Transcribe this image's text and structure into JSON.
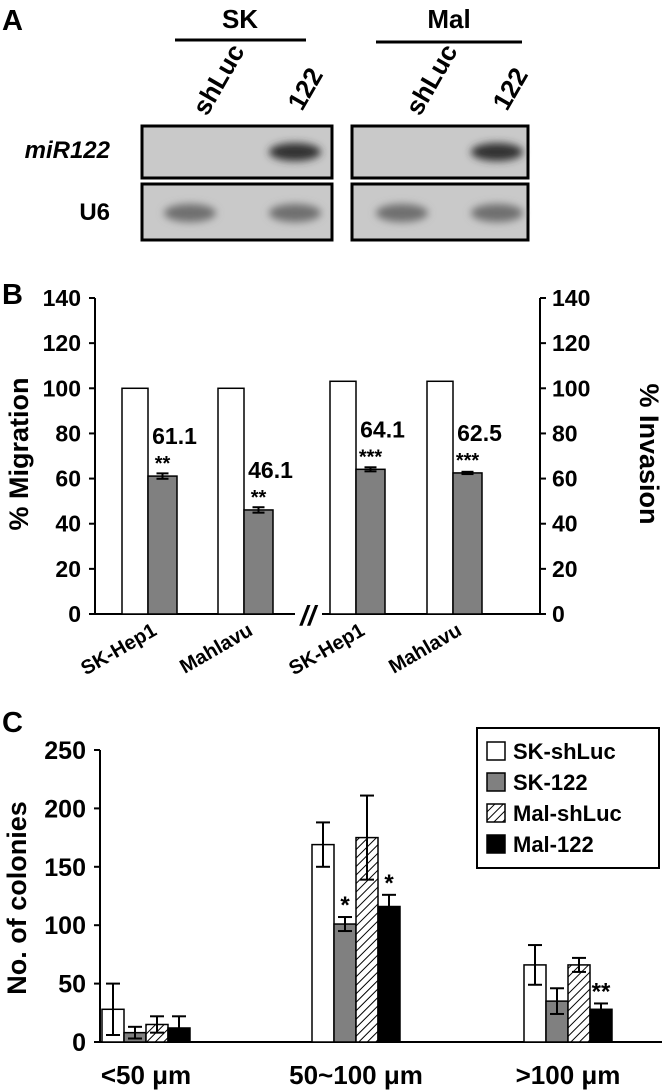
{
  "panel_a": {
    "letter": "A",
    "groups": [
      {
        "name": "SK",
        "lanes": [
          "shLuc",
          "122"
        ]
      },
      {
        "name": "Mal",
        "lanes": [
          "shLuc",
          "122"
        ]
      }
    ],
    "rows": [
      "miR122",
      "U6"
    ],
    "band_signal": {
      "miR122": [
        0,
        1,
        0,
        1
      ],
      "U6": [
        1,
        1,
        1,
        1
      ]
    }
  },
  "chart_data": [
    {
      "panel": "B",
      "type": "bar",
      "title": "",
      "ylabel_left": "% Migration",
      "ylabel_right": "% Invasion",
      "ylim": [
        0,
        140
      ],
      "yticks": [
        0,
        20,
        40,
        60,
        80,
        100,
        120,
        140
      ],
      "groups": [
        {
          "assay": "Migration",
          "category": "SK-Hep1",
          "values": [
            100,
            61.1
          ],
          "errors": [
            0,
            1.2
          ],
          "label": "61.1",
          "sig": "**"
        },
        {
          "assay": "Migration",
          "category": "Mahlavu",
          "values": [
            100,
            46.1
          ],
          "errors": [
            0,
            1.2
          ],
          "label": "46.1",
          "sig": "**"
        },
        {
          "assay": "Invasion",
          "category": "SK-Hep1",
          "values": [
            100,
            64.1
          ],
          "errors": [
            0,
            0.9
          ],
          "label": "64.1",
          "sig": "***"
        },
        {
          "assay": "Invasion",
          "category": "Mahlavu",
          "values": [
            100,
            62.5
          ],
          "errors": [
            0,
            0.5
          ],
          "label": "62.5",
          "sig": "***"
        }
      ],
      "break_mark": "//",
      "grid": false
    },
    {
      "panel": "C",
      "type": "bar",
      "title": "",
      "ylabel": "No. of colonies",
      "ylim": [
        0,
        250
      ],
      "yticks": [
        0,
        50,
        100,
        150,
        200,
        250
      ],
      "categories": [
        "<50 μm",
        "50~100 μm",
        ">100 μm"
      ],
      "series": [
        {
          "name": "SK-shLuc",
          "style": "white",
          "values": [
            28,
            169,
            66
          ],
          "errors": [
            22,
            19,
            17
          ],
          "sig": [
            "",
            "",
            ""
          ]
        },
        {
          "name": "SK-122",
          "style": "gray",
          "values": [
            8,
            101,
            35
          ],
          "errors": [
            5,
            6,
            11
          ],
          "sig": [
            "",
            "*",
            ""
          ]
        },
        {
          "name": "Mal-shLuc",
          "style": "hatch",
          "values": [
            15,
            175,
            66
          ],
          "errors": [
            7,
            36,
            6
          ],
          "sig": [
            "",
            "",
            ""
          ]
        },
        {
          "name": "Mal-122",
          "style": "black",
          "values": [
            12,
            116,
            28
          ],
          "errors": [
            10,
            10,
            5
          ],
          "sig": [
            "",
            "*",
            "**"
          ]
        }
      ],
      "legend": "top-right",
      "grid": false
    }
  ],
  "colors": {
    "gray": "#808080",
    "black": "#000000",
    "white": "#ffffff"
  }
}
